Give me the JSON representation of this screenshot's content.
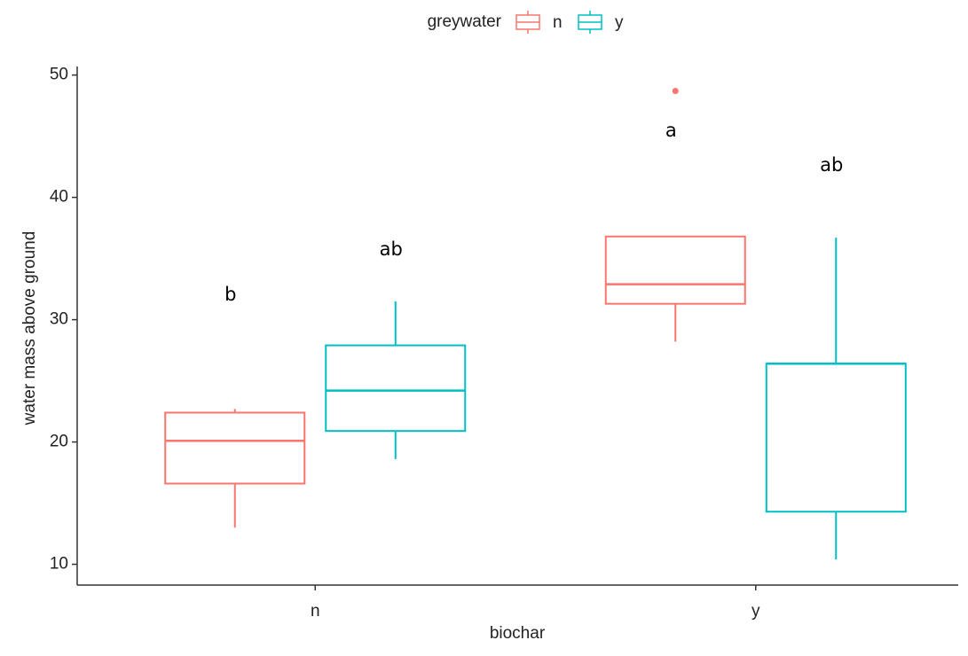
{
  "chart_data": {
    "type": "boxplot",
    "x_label": "biochar",
    "y_label": "water mass above ground",
    "legend_title": "greywater",
    "legend_position": "top",
    "grid": false,
    "categories": [
      "n",
      "y"
    ],
    "series": [
      {
        "name": "n",
        "color": "#F8766D",
        "whislo": [
          13.0,
          28.2
        ],
        "q1": [
          16.6,
          31.3
        ],
        "median": [
          20.1,
          32.9
        ],
        "q3": [
          22.4,
          36.8
        ],
        "whishi": [
          22.7,
          36.8
        ],
        "outliers": [
          [],
          [
            48.7
          ]
        ],
        "labels": [
          "b",
          "a"
        ]
      },
      {
        "name": "y",
        "color": "#00BFC4",
        "whislo": [
          18.6,
          10.4
        ],
        "q1": [
          20.9,
          14.3
        ],
        "median": [
          24.2,
          26.4
        ],
        "q3": [
          27.9,
          26.4
        ],
        "whishi": [
          31.5,
          36.7
        ],
        "outliers": [
          [],
          []
        ],
        "labels": [
          "ab",
          "ab"
        ]
      }
    ],
    "ylim": [
      8.3,
      50.7
    ],
    "yticks": [
      10,
      20,
      30,
      40,
      50
    ]
  }
}
